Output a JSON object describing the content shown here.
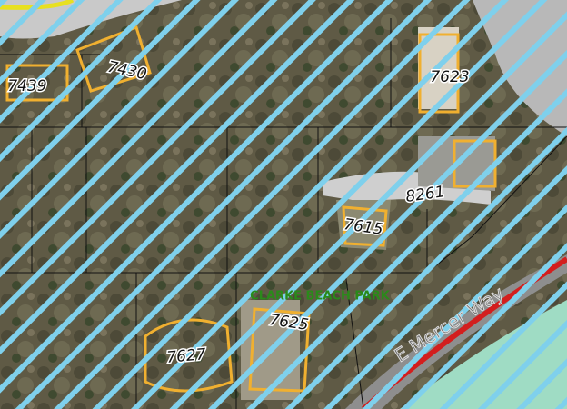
{
  "map": {
    "addresses": [
      "7439",
      "7430",
      "7623",
      "8261",
      "7615",
      "7625",
      "7627"
    ],
    "park": "CLARKE BEACH PARK",
    "road": "E Mercer Way"
  }
}
